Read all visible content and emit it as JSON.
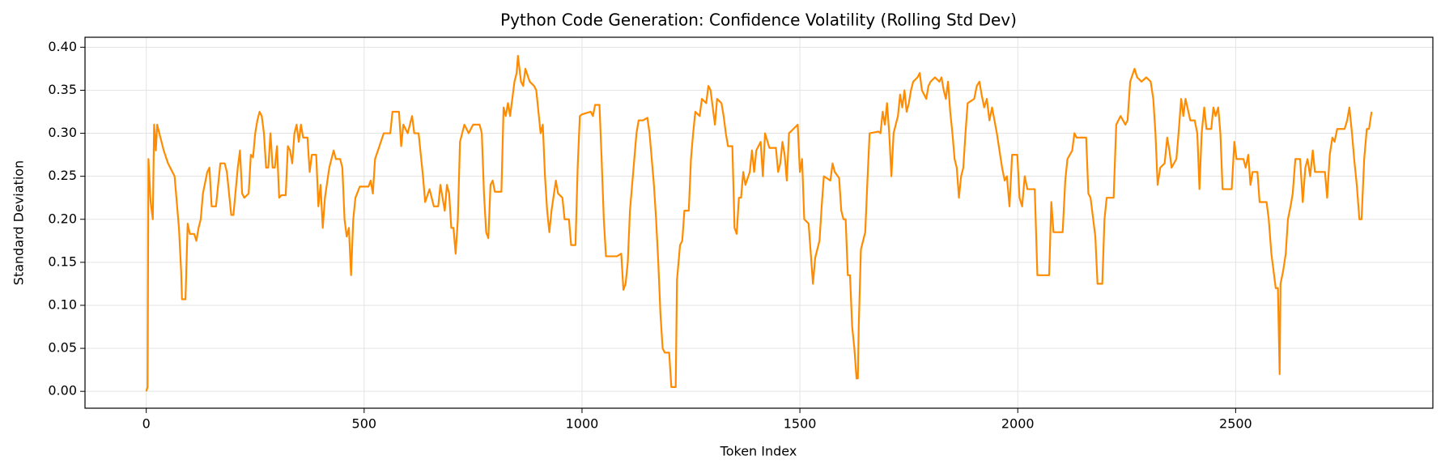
{
  "chart_data": {
    "type": "line",
    "title": "Python Code Generation: Confidence Volatility (Rolling Std Dev)",
    "xlabel": "Token Index",
    "ylabel": "Standard Deviation",
    "color": "#ff8c00",
    "grid": true,
    "xlim": [
      -140.6,
      2952.6
    ],
    "ylim": [
      -0.0196,
      0.4116
    ],
    "xticks": [
      0,
      500,
      1000,
      1500,
      2000,
      2500
    ],
    "yticks": [
      {
        "value": 0,
        "label": "0.00"
      },
      0.05,
      {
        "value": 0.1,
        "label": "0.10"
      },
      0.15,
      {
        "value": 0.2,
        "label": "0.20"
      },
      0.25,
      {
        "value": 0.3,
        "label": "0.30"
      },
      0.35,
      {
        "value": 0.4,
        "label": "0.40"
      }
    ],
    "x": [
      0,
      3,
      5,
      10,
      15,
      18,
      22,
      25,
      30,
      40,
      50,
      55,
      60,
      65,
      70,
      75,
      80,
      82,
      90,
      95,
      100,
      110,
      115,
      120,
      125,
      130,
      140,
      145,
      150,
      160,
      165,
      170,
      180,
      185,
      190,
      195,
      200,
      210,
      215,
      220,
      225,
      235,
      240,
      245,
      250,
      255,
      260,
      265,
      270,
      275,
      280,
      285,
      290,
      295,
      300,
      305,
      310,
      320,
      325,
      330,
      335,
      340,
      345,
      350,
      355,
      360,
      370,
      375,
      380,
      390,
      395,
      400,
      405,
      410,
      420,
      430,
      435,
      445,
      450,
      455,
      460,
      465,
      470,
      475,
      480,
      490,
      510,
      515,
      520,
      525,
      535,
      545,
      560,
      565,
      580,
      585,
      590,
      600,
      610,
      615,
      625,
      635,
      640,
      650,
      660,
      670,
      675,
      685,
      690,
      695,
      700,
      705,
      710,
      715,
      720,
      730,
      740,
      750,
      765,
      770,
      775,
      780,
      785,
      790,
      795,
      800,
      815,
      820,
      825,
      830,
      835,
      840,
      845,
      850,
      853,
      860,
      865,
      870,
      880,
      890,
      895,
      905,
      910,
      915,
      920,
      925,
      930,
      940,
      945,
      955,
      960,
      970,
      975,
      985,
      990,
      995,
      1000,
      1020,
      1025,
      1030,
      1040,
      1045,
      1050,
      1055,
      1080,
      1090,
      1095,
      1100,
      1105,
      1110,
      1120,
      1125,
      1130,
      1140,
      1150,
      1155,
      1165,
      1170,
      1175,
      1180,
      1185,
      1190,
      1200,
      1205,
      1215,
      1218,
      1225,
      1230,
      1235,
      1245,
      1250,
      1255,
      1260,
      1270,
      1275,
      1285,
      1290,
      1295,
      1300,
      1305,
      1310,
      1320,
      1325,
      1330,
      1335,
      1345,
      1350,
      1355,
      1360,
      1365,
      1370,
      1375,
      1385,
      1390,
      1395,
      1400,
      1410,
      1415,
      1420,
      1430,
      1445,
      1450,
      1455,
      1460,
      1465,
      1470,
      1475,
      1485,
      1495,
      1500,
      1505,
      1510,
      1520,
      1525,
      1530,
      1535,
      1545,
      1550,
      1555,
      1570,
      1575,
      1580,
      1590,
      1595,
      1600,
      1605,
      1610,
      1615,
      1620,
      1625,
      1630,
      1633,
      1635,
      1640,
      1650,
      1655,
      1660,
      1680,
      1685,
      1690,
      1695,
      1700,
      1705,
      1710,
      1715,
      1725,
      1730,
      1735,
      1740,
      1745,
      1750,
      1755,
      1760,
      1770,
      1775,
      1780,
      1790,
      1795,
      1800,
      1810,
      1820,
      1825,
      1830,
      1835,
      1840,
      1845,
      1850,
      1855,
      1860,
      1865,
      1870,
      1875,
      1880,
      1885,
      1900,
      1906,
      1912,
      1917,
      1923,
      1929,
      1935,
      1941,
      1952,
      1958,
      1964,
      1970,
      1975,
      1981,
      1987,
      1999,
      2004,
      2010,
      2016,
      2022,
      2039,
      2045,
      2072,
      2077,
      2082,
      2103,
      2109,
      2114,
      2125,
      2130,
      2135,
      2157,
      2162,
      2167,
      2178,
      2183,
      2194,
      2199,
      2204,
      2220,
      2226,
      2236,
      2247,
      2252,
      2258,
      2268,
      2274,
      2284,
      2295,
      2305,
      2311,
      2316,
      2321,
      2327,
      2337,
      2343,
      2348,
      2353,
      2364,
      2369,
      2375,
      2380,
      2385,
      2396,
      2406,
      2412,
      2417,
      2422,
      2428,
      2433,
      2444,
      2449,
      2454,
      2460,
      2465,
      2470,
      2491,
      2497,
      2502,
      2518,
      2523,
      2529,
      2534,
      2539,
      2550,
      2555,
      2571,
      2576,
      2582,
      2587,
      2592,
      2597,
      2601,
      2603,
      2609,
      2615,
      2620,
      2626,
      2631,
      2637,
      2648,
      2654,
      2660,
      2665,
      2671,
      2677,
      2682,
      2705,
      2710,
      2716,
      2722,
      2727,
      2733,
      2750,
      2756,
      2761,
      2767,
      2772,
      2778,
      2784,
      2789,
      2795,
      2801,
      2806,
      2812
    ],
    "values": [
      0,
      0.005,
      0.27,
      0.22,
      0.2,
      0.31,
      0.28,
      0.31,
      0.3,
      0.28,
      0.265,
      0.26,
      0.255,
      0.25,
      0.22,
      0.19,
      0.14,
      0.107,
      0.107,
      0.195,
      0.183,
      0.183,
      0.175,
      0.19,
      0.2,
      0.23,
      0.255,
      0.26,
      0.215,
      0.215,
      0.24,
      0.265,
      0.265,
      0.255,
      0.23,
      0.205,
      0.205,
      0.26,
      0.28,
      0.23,
      0.225,
      0.23,
      0.275,
      0.272,
      0.3,
      0.315,
      0.325,
      0.32,
      0.3,
      0.26,
      0.26,
      0.3,
      0.26,
      0.26,
      0.285,
      0.225,
      0.228,
      0.228,
      0.285,
      0.28,
      0.265,
      0.3,
      0.31,
      0.29,
      0.31,
      0.295,
      0.295,
      0.255,
      0.275,
      0.275,
      0.215,
      0.24,
      0.19,
      0.225,
      0.26,
      0.28,
      0.27,
      0.27,
      0.26,
      0.2,
      0.18,
      0.19,
      0.135,
      0.2,
      0.225,
      0.238,
      0.238,
      0.245,
      0.23,
      0.27,
      0.285,
      0.3,
      0.3,
      0.325,
      0.325,
      0.285,
      0.31,
      0.3,
      0.32,
      0.3,
      0.3,
      0.25,
      0.22,
      0.235,
      0.215,
      0.215,
      0.24,
      0.21,
      0.24,
      0.23,
      0.19,
      0.19,
      0.16,
      0.2,
      0.29,
      0.31,
      0.3,
      0.31,
      0.31,
      0.3,
      0.23,
      0.185,
      0.178,
      0.24,
      0.245,
      0.232,
      0.232,
      0.33,
      0.32,
      0.335,
      0.32,
      0.34,
      0.36,
      0.37,
      0.39,
      0.36,
      0.355,
      0.375,
      0.36,
      0.355,
      0.35,
      0.3,
      0.31,
      0.25,
      0.21,
      0.185,
      0.21,
      0.245,
      0.23,
      0.225,
      0.2,
      0.2,
      0.17,
      0.17,
      0.26,
      0.32,
      0.322,
      0.325,
      0.32,
      0.333,
      0.333,
      0.27,
      0.2,
      0.157,
      0.157,
      0.16,
      0.118,
      0.125,
      0.15,
      0.21,
      0.27,
      0.3,
      0.315,
      0.315,
      0.318,
      0.3,
      0.24,
      0.2,
      0.15,
      0.09,
      0.05,
      0.045,
      0.045,
      0.005,
      0.005,
      0.13,
      0.17,
      0.175,
      0.21,
      0.21,
      0.27,
      0.3,
      0.325,
      0.32,
      0.34,
      0.335,
      0.355,
      0.35,
      0.33,
      0.31,
      0.34,
      0.335,
      0.32,
      0.3,
      0.285,
      0.285,
      0.19,
      0.183,
      0.225,
      0.225,
      0.255,
      0.24,
      0.255,
      0.28,
      0.255,
      0.28,
      0.29,
      0.25,
      0.3,
      0.283,
      0.283,
      0.255,
      0.265,
      0.29,
      0.275,
      0.245,
      0.3,
      0.305,
      0.31,
      0.255,
      0.27,
      0.2,
      0.195,
      0.16,
      0.125,
      0.155,
      0.175,
      0.215,
      0.25,
      0.245,
      0.265,
      0.255,
      0.248,
      0.21,
      0.2,
      0.2,
      0.135,
      0.135,
      0.075,
      0.05,
      0.015,
      0.015,
      0.075,
      0.165,
      0.185,
      0.245,
      0.3,
      0.302,
      0.3,
      0.325,
      0.31,
      0.335,
      0.3,
      0.25,
      0.3,
      0.32,
      0.345,
      0.33,
      0.35,
      0.325,
      0.335,
      0.35,
      0.36,
      0.365,
      0.37,
      0.35,
      0.34,
      0.355,
      0.36,
      0.365,
      0.36,
      0.365,
      0.35,
      0.34,
      0.36,
      0.325,
      0.3,
      0.27,
      0.26,
      0.225,
      0.25,
      0.26,
      0.3,
      0.335,
      0.34,
      0.355,
      0.36,
      0.345,
      0.33,
      0.34,
      0.315,
      0.33,
      0.3,
      0.28,
      0.26,
      0.245,
      0.25,
      0.215,
      0.275,
      0.275,
      0.225,
      0.215,
      0.25,
      0.235,
      0.235,
      0.135,
      0.135,
      0.22,
      0.185,
      0.185,
      0.245,
      0.27,
      0.28,
      0.3,
      0.295,
      0.295,
      0.23,
      0.225,
      0.18,
      0.125,
      0.125,
      0.2,
      0.225,
      0.225,
      0.31,
      0.32,
      0.31,
      0.315,
      0.36,
      0.375,
      0.365,
      0.36,
      0.365,
      0.36,
      0.34,
      0.3,
      0.24,
      0.26,
      0.265,
      0.295,
      0.28,
      0.26,
      0.27,
      0.3,
      0.34,
      0.32,
      0.34,
      0.315,
      0.315,
      0.3,
      0.235,
      0.3,
      0.33,
      0.305,
      0.305,
      0.33,
      0.32,
      0.33,
      0.3,
      0.235,
      0.235,
      0.29,
      0.27,
      0.27,
      0.26,
      0.275,
      0.24,
      0.255,
      0.255,
      0.22,
      0.22,
      0.2,
      0.16,
      0.14,
      0.12,
      0.12,
      0.02,
      0.125,
      0.14,
      0.16,
      0.2,
      0.215,
      0.23,
      0.27,
      0.27,
      0.22,
      0.26,
      0.27,
      0.25,
      0.28,
      0.255,
      0.255,
      0.225,
      0.275,
      0.295,
      0.29,
      0.305,
      0.305,
      0.315,
      0.33,
      0.3,
      0.27,
      0.24,
      0.2,
      0.2,
      0.27,
      0.305,
      0.305,
      0.325
    ]
  }
}
